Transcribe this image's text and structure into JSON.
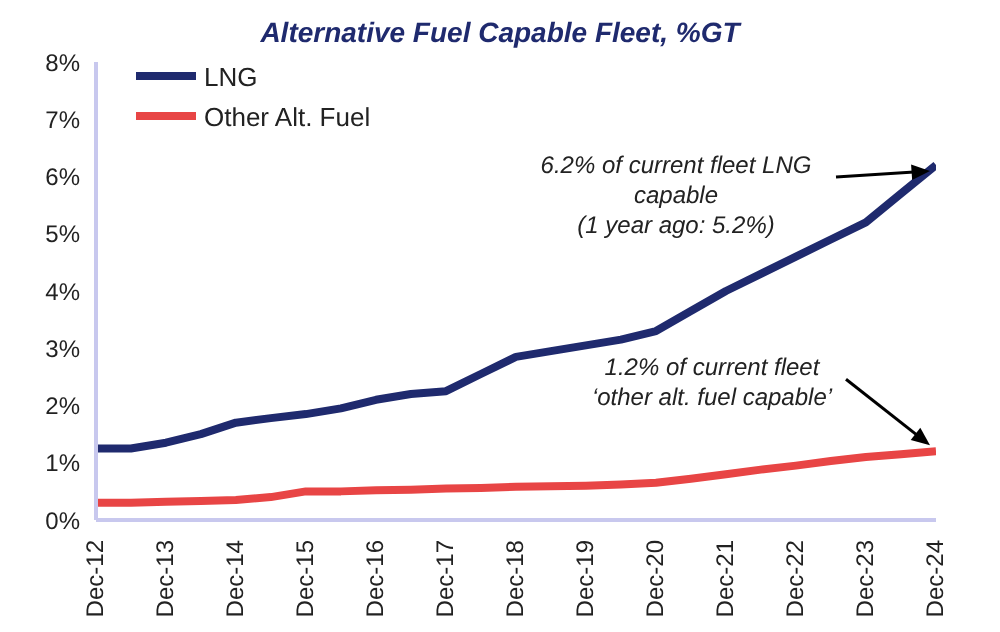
{
  "chart_data": {
    "type": "line",
    "title": "Alternative Fuel Capable Fleet, %GT",
    "x": [
      "2012-12",
      "2013-06",
      "2013-12",
      "2014-06",
      "2014-12",
      "2015-06",
      "2015-12",
      "2016-06",
      "2016-12",
      "2017-06",
      "2017-12",
      "2018-06",
      "2018-12",
      "2019-06",
      "2019-12",
      "2020-06",
      "2020-12",
      "2021-06",
      "2021-12",
      "2022-06",
      "2022-12",
      "2023-06",
      "2023-12",
      "2024-06",
      "2024-12"
    ],
    "series": [
      {
        "name": "LNG",
        "color": "#1f2a6e",
        "values": [
          1.25,
          1.25,
          1.35,
          1.5,
          1.7,
          1.78,
          1.85,
          1.95,
          2.1,
          2.2,
          2.25,
          2.55,
          2.85,
          2.95,
          3.05,
          3.15,
          3.3,
          3.65,
          4.0,
          4.3,
          4.6,
          4.9,
          5.2,
          5.7,
          6.2
        ]
      },
      {
        "name": "Other Alt. Fuel",
        "color": "#e84545",
        "values": [
          0.3,
          0.3,
          0.32,
          0.33,
          0.35,
          0.4,
          0.5,
          0.5,
          0.52,
          0.53,
          0.55,
          0.56,
          0.58,
          0.59,
          0.6,
          0.62,
          0.65,
          0.72,
          0.8,
          0.88,
          0.95,
          1.03,
          1.1,
          1.15,
          1.2
        ]
      }
    ],
    "xlim": [
      "2012-12",
      "2024-12"
    ],
    "xticks": [
      {
        "value": "2012-12",
        "label": "Dec-12"
      },
      {
        "value": "2013-12",
        "label": "Dec-13"
      },
      {
        "value": "2014-12",
        "label": "Dec-14"
      },
      {
        "value": "2015-12",
        "label": "Dec-15"
      },
      {
        "value": "2016-12",
        "label": "Dec-16"
      },
      {
        "value": "2017-12",
        "label": "Dec-17"
      },
      {
        "value": "2018-12",
        "label": "Dec-18"
      },
      {
        "value": "2019-12",
        "label": "Dec-19"
      },
      {
        "value": "2020-12",
        "label": "Dec-20"
      },
      {
        "value": "2021-12",
        "label": "Dec-21"
      },
      {
        "value": "2022-12",
        "label": "Dec-22"
      },
      {
        "value": "2023-12",
        "label": "Dec-23"
      },
      {
        "value": "2024-12",
        "label": "Dec-24"
      }
    ],
    "ylim": [
      0,
      8
    ],
    "yticks": [
      {
        "value": 0,
        "label": "0%"
      },
      {
        "value": 1,
        "label": "1%"
      },
      {
        "value": 2,
        "label": "2%"
      },
      {
        "value": 3,
        "label": "3%"
      },
      {
        "value": 4,
        "label": "4%"
      },
      {
        "value": 5,
        "label": "5%"
      },
      {
        "value": 6,
        "label": "6%"
      },
      {
        "value": 7,
        "label": "7%"
      },
      {
        "value": 8,
        "label": "8%"
      }
    ],
    "annotations": [
      {
        "text": "6.2% of current fleet LNG\ncapable\n(1 year ago: 5.2%)",
        "x": "2024-12",
        "y": 6.2
      },
      {
        "text": "1.2% of current fleet\n‘other alt. fuel capable’",
        "x": "2024-12",
        "y": 1.2
      }
    ],
    "grid": false,
    "legend": "top left",
    "marker": "none",
    "line_style": "solid"
  }
}
